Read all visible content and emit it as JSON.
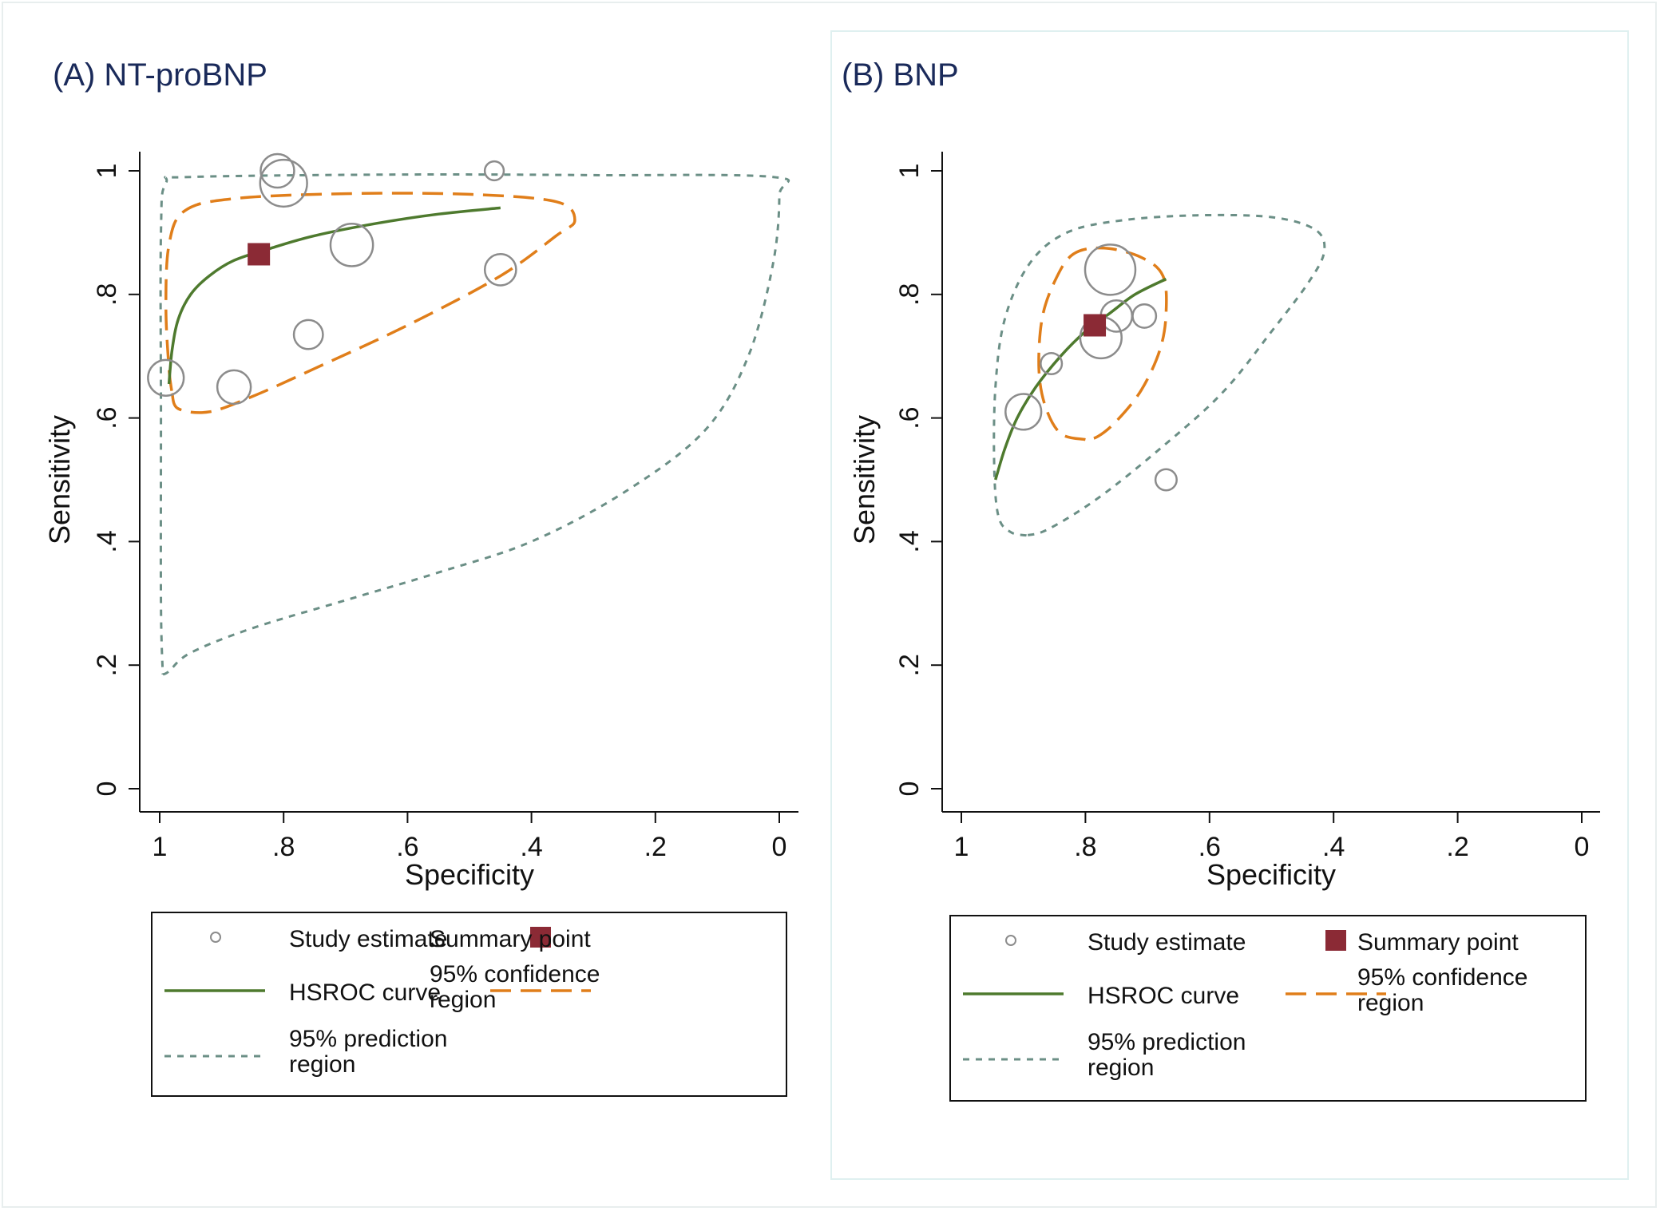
{
  "chart_data": [
    {
      "type": "scatter",
      "title": "(A) NT-proBNP",
      "xlabel": "Specificity",
      "ylabel": "Sensitivity",
      "x_reversed": true,
      "xlim": [
        1,
        0
      ],
      "ylim": [
        0,
        1
      ],
      "xticks": [
        1,
        0.8,
        0.6,
        0.4,
        0.2,
        0
      ],
      "xtick_labels": [
        "1",
        ".8",
        ".6",
        ".4",
        ".2",
        "0"
      ],
      "yticks": [
        0,
        0.2,
        0.4,
        0.6,
        0.8,
        1
      ],
      "ytick_labels": [
        "0",
        ".2",
        ".4",
        ".6",
        ".8",
        "1"
      ],
      "grid": false,
      "legend_placement": "bottom",
      "study_estimates": [
        {
          "specificity": 0.81,
          "sensitivity": 1.0,
          "weight": 1.0
        },
        {
          "specificity": 0.8,
          "sensitivity": 0.98,
          "weight": 1.6
        },
        {
          "specificity": 0.46,
          "sensitivity": 1.0,
          "weight": 0.35
        },
        {
          "specificity": 0.69,
          "sensitivity": 0.88,
          "weight": 1.4
        },
        {
          "specificity": 0.45,
          "sensitivity": 0.84,
          "weight": 0.9
        },
        {
          "specificity": 0.76,
          "sensitivity": 0.735,
          "weight": 0.8
        },
        {
          "specificity": 0.99,
          "sensitivity": 0.665,
          "weight": 1.1
        },
        {
          "specificity": 0.88,
          "sensitivity": 0.65,
          "weight": 1.0
        }
      ],
      "summary_point": {
        "specificity": 0.84,
        "sensitivity": 0.865
      },
      "hsroc_curve": [
        [
          0.985,
          0.655
        ],
        [
          0.98,
          0.71
        ],
        [
          0.97,
          0.76
        ],
        [
          0.95,
          0.8
        ],
        [
          0.92,
          0.83
        ],
        [
          0.88,
          0.855
        ],
        [
          0.82,
          0.875
        ],
        [
          0.75,
          0.895
        ],
        [
          0.65,
          0.915
        ],
        [
          0.55,
          0.93
        ],
        [
          0.45,
          0.94
        ]
      ],
      "confidence_region": [
        [
          0.98,
          0.64
        ],
        [
          0.97,
          0.615
        ],
        [
          0.92,
          0.61
        ],
        [
          0.85,
          0.635
        ],
        [
          0.75,
          0.68
        ],
        [
          0.6,
          0.75
        ],
        [
          0.45,
          0.83
        ],
        [
          0.36,
          0.895
        ],
        [
          0.33,
          0.92
        ],
        [
          0.36,
          0.95
        ],
        [
          0.5,
          0.962
        ],
        [
          0.7,
          0.963
        ],
        [
          0.88,
          0.955
        ],
        [
          0.96,
          0.935
        ],
        [
          0.985,
          0.88
        ],
        [
          0.99,
          0.78
        ],
        [
          0.985,
          0.68
        ],
        [
          0.98,
          0.64
        ]
      ],
      "prediction_region": [
        [
          0.995,
          0.185
        ],
        [
          0.985,
          0.19
        ],
        [
          0.95,
          0.22
        ],
        [
          0.85,
          0.26
        ],
        [
          0.7,
          0.305
        ],
        [
          0.55,
          0.35
        ],
        [
          0.4,
          0.4
        ],
        [
          0.25,
          0.48
        ],
        [
          0.12,
          0.58
        ],
        [
          0.05,
          0.7
        ],
        [
          0.01,
          0.85
        ],
        [
          0.0,
          0.96
        ],
        [
          0.01,
          0.99
        ],
        [
          0.3,
          0.993
        ],
        [
          0.6,
          0.994
        ],
        [
          0.95,
          0.99
        ],
        [
          0.99,
          0.98
        ],
        [
          0.998,
          0.9
        ],
        [
          0.998,
          0.6
        ],
        [
          0.998,
          0.3
        ],
        [
          0.995,
          0.185
        ]
      ],
      "legend": [
        "Study estimate",
        "Summary point",
        "HSROC curve",
        "95% confidence region",
        "95% prediction region"
      ]
    },
    {
      "type": "scatter",
      "title": "(B) BNP",
      "xlabel": "Specificity",
      "ylabel": "Sensitivity",
      "x_reversed": true,
      "xlim": [
        1,
        0
      ],
      "ylim": [
        0,
        1
      ],
      "xticks": [
        1,
        0.8,
        0.6,
        0.4,
        0.2,
        0
      ],
      "xtick_labels": [
        "1",
        ".8",
        ".6",
        ".4",
        ".2",
        "0"
      ],
      "yticks": [
        0,
        0.2,
        0.4,
        0.6,
        0.8,
        1
      ],
      "ytick_labels": [
        "0",
        ".2",
        ".4",
        ".6",
        ".8",
        "1"
      ],
      "grid": false,
      "legend_placement": "bottom",
      "study_estimates": [
        {
          "specificity": 0.76,
          "sensitivity": 0.84,
          "weight": 1.75
        },
        {
          "specificity": 0.75,
          "sensitivity": 0.765,
          "weight": 0.9
        },
        {
          "specificity": 0.705,
          "sensitivity": 0.765,
          "weight": 0.55
        },
        {
          "specificity": 0.775,
          "sensitivity": 0.73,
          "weight": 1.35
        },
        {
          "specificity": 0.855,
          "sensitivity": 0.688,
          "weight": 0.45
        },
        {
          "specificity": 0.9,
          "sensitivity": 0.61,
          "weight": 1.1
        },
        {
          "specificity": 0.67,
          "sensitivity": 0.5,
          "weight": 0.45
        }
      ],
      "summary_point": {
        "specificity": 0.785,
        "sensitivity": 0.75
      },
      "hsroc_curve": [
        [
          0.945,
          0.5
        ],
        [
          0.93,
          0.55
        ],
        [
          0.91,
          0.6
        ],
        [
          0.88,
          0.65
        ],
        [
          0.84,
          0.7
        ],
        [
          0.8,
          0.74
        ],
        [
          0.76,
          0.77
        ],
        [
          0.72,
          0.8
        ],
        [
          0.67,
          0.825
        ]
      ],
      "confidence_region": [
        [
          0.8,
          0.565
        ],
        [
          0.84,
          0.575
        ],
        [
          0.865,
          0.62
        ],
        [
          0.875,
          0.68
        ],
        [
          0.87,
          0.76
        ],
        [
          0.85,
          0.82
        ],
        [
          0.82,
          0.865
        ],
        [
          0.77,
          0.875
        ],
        [
          0.71,
          0.86
        ],
        [
          0.675,
          0.83
        ],
        [
          0.67,
          0.77
        ],
        [
          0.68,
          0.71
        ],
        [
          0.71,
          0.645
        ],
        [
          0.75,
          0.595
        ],
        [
          0.78,
          0.57
        ],
        [
          0.8,
          0.565
        ]
      ],
      "prediction_region": [
        [
          0.895,
          0.41
        ],
        [
          0.92,
          0.415
        ],
        [
          0.94,
          0.44
        ],
        [
          0.947,
          0.52
        ],
        [
          0.945,
          0.65
        ],
        [
          0.93,
          0.76
        ],
        [
          0.89,
          0.85
        ],
        [
          0.83,
          0.9
        ],
        [
          0.74,
          0.92
        ],
        [
          0.62,
          0.928
        ],
        [
          0.5,
          0.925
        ],
        [
          0.43,
          0.905
        ],
        [
          0.415,
          0.87
        ],
        [
          0.44,
          0.82
        ],
        [
          0.5,
          0.74
        ],
        [
          0.58,
          0.64
        ],
        [
          0.68,
          0.55
        ],
        [
          0.78,
          0.47
        ],
        [
          0.86,
          0.42
        ],
        [
          0.895,
          0.41
        ]
      ],
      "legend": [
        "Study estimate",
        "Summary point",
        "HSROC curve",
        "95% confidence region",
        "95% prediction region"
      ]
    }
  ],
  "colors": {
    "title": "#1a2a5a",
    "axis": "#111111",
    "study_circle": "#8c8c8c",
    "summary_point": "#8b2a35",
    "hsroc_curve": "#4e7a2e",
    "confidence_region": "#e07e1a",
    "prediction_region": "#6b8f86"
  }
}
